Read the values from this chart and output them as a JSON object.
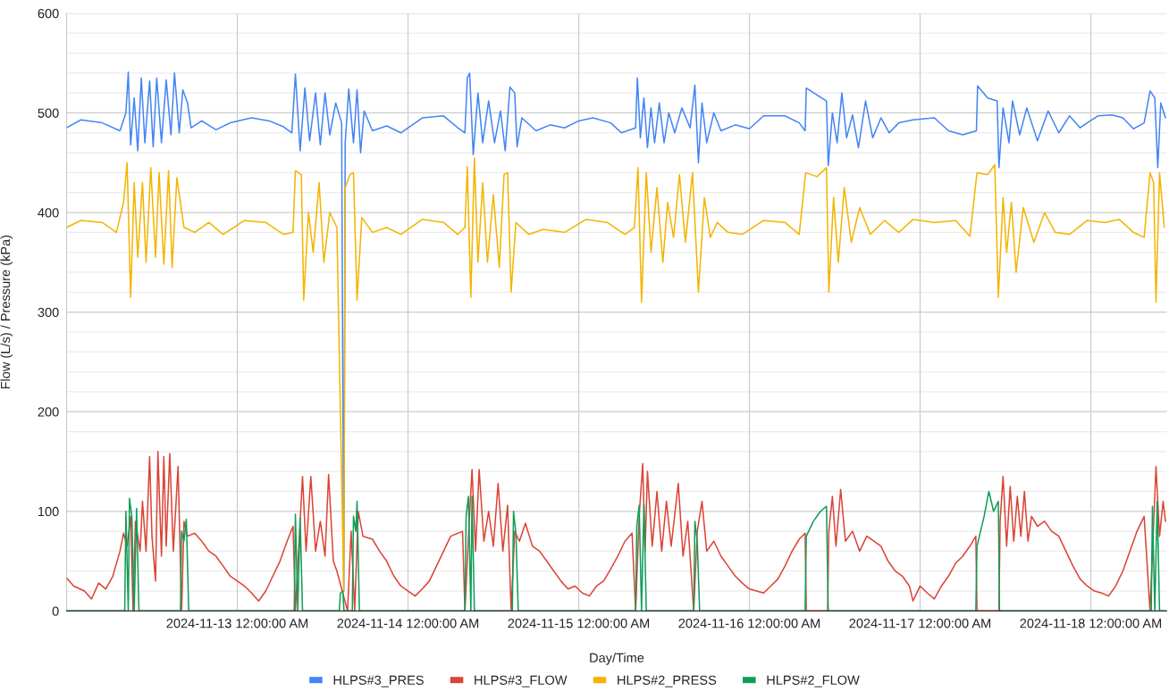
{
  "chart_data": {
    "type": "line",
    "xlabel": "Day/Time",
    "ylabel": "Flow (L/s) / Pressure (kPa)",
    "xlim": [
      "2024-11-12T00:00",
      "2024-11-18T10:40"
    ],
    "xticks": [
      {
        "value": "2024-11-13T00:00",
        "label": "2024-11-13 12:00:00 AM"
      },
      {
        "value": "2024-11-14T00:00",
        "label": "2024-11-14 12:00:00 AM"
      },
      {
        "value": "2024-11-15T00:00",
        "label": "2024-11-15 12:00:00 AM"
      },
      {
        "value": "2024-11-16T00:00",
        "label": "2024-11-16 12:00:00 AM"
      },
      {
        "value": "2024-11-17T00:00",
        "label": "2024-11-17 12:00:00 AM"
      },
      {
        "value": "2024-11-18T00:00",
        "label": "2024-11-18 12:00:00 AM"
      }
    ],
    "ylim": [
      0,
      600
    ],
    "yticks": [
      0,
      {
        "value": 20,
        "label": null
      },
      {
        "value": 40,
        "label": null
      },
      {
        "value": 60,
        "label": null
      },
      {
        "value": 80,
        "label": null
      },
      100,
      {
        "value": 120,
        "label": null
      },
      {
        "value": 140,
        "label": null
      },
      {
        "value": 160,
        "label": null
      },
      {
        "value": 180,
        "label": null
      },
      200,
      {
        "value": 220,
        "label": null
      },
      {
        "value": 240,
        "label": null
      },
      {
        "value": 260,
        "label": null
      },
      {
        "value": 280,
        "label": null
      },
      300,
      {
        "value": 320,
        "label": null
      },
      {
        "value": 340,
        "label": null
      },
      {
        "value": 360,
        "label": null
      },
      {
        "value": 380,
        "label": null
      },
      400,
      {
        "value": 420,
        "label": null
      },
      {
        "value": 440,
        "label": null
      },
      {
        "value": 460,
        "label": null
      },
      {
        "value": 480,
        "label": null
      },
      500,
      {
        "value": 520,
        "label": null
      },
      {
        "value": 540,
        "label": null
      },
      {
        "value": 560,
        "label": null
      },
      {
        "value": 580,
        "label": null
      },
      600
    ],
    "grid": true,
    "legend": "bottom",
    "marker": "none",
    "line_style": "solid",
    "series": [
      {
        "name": "HLPS#3_PRES",
        "color": "#4285f4",
        "x": [
          "2024-11-12T00:00",
          "2024-11-12T02:00",
          "2024-11-12T05:00",
          "2024-11-12T07:30",
          "2024-11-12T08:20",
          "2024-11-12T08:40",
          "2024-11-12T09:00",
          "2024-11-12T09:30",
          "2024-11-12T10:00",
          "2024-11-12T10:30",
          "2024-11-12T11:00",
          "2024-11-12T11:40",
          "2024-11-12T12:10",
          "2024-11-12T12:40",
          "2024-11-12T13:20",
          "2024-11-12T14:00",
          "2024-11-12T14:40",
          "2024-11-12T15:10",
          "2024-11-12T15:50",
          "2024-11-12T16:20",
          "2024-11-12T17:00",
          "2024-11-12T17:30",
          "2024-11-12T19:00",
          "2024-11-12T21:00",
          "2024-11-12T23:00",
          "2024-11-13T02:00",
          "2024-11-13T04:30",
          "2024-11-13T06:30",
          "2024-11-13T07:40",
          "2024-11-13T08:10",
          "2024-11-13T08:50",
          "2024-11-13T09:30",
          "2024-11-13T10:10",
          "2024-11-13T11:00",
          "2024-11-13T11:40",
          "2024-11-13T12:20",
          "2024-11-13T13:00",
          "2024-11-13T13:50",
          "2024-11-13T14:40",
          "2024-11-13T14:58",
          "2024-11-13T15:10",
          "2024-11-13T15:40",
          "2024-11-13T16:20",
          "2024-11-13T16:50",
          "2024-11-13T17:20",
          "2024-11-13T17:50",
          "2024-11-13T19:00",
          "2024-11-13T21:00",
          "2024-11-13T23:00",
          "2024-11-14T02:00",
          "2024-11-14T05:00",
          "2024-11-14T07:00",
          "2024-11-14T08:00",
          "2024-11-14T08:20",
          "2024-11-14T08:40",
          "2024-11-14T09:10",
          "2024-11-14T09:50",
          "2024-11-14T10:30",
          "2024-11-14T11:20",
          "2024-11-14T12:10",
          "2024-11-14T13:00",
          "2024-11-14T13:40",
          "2024-11-14T14:20",
          "2024-11-14T15:00",
          "2024-11-14T15:20",
          "2024-11-14T16:00",
          "2024-11-14T18:00",
          "2024-11-14T20:00",
          "2024-11-14T22:00",
          "2024-11-15T00:00",
          "2024-11-15T02:00",
          "2024-11-15T04:30",
          "2024-11-15T06:00",
          "2024-11-15T08:00",
          "2024-11-15T08:15",
          "2024-11-15T08:40",
          "2024-11-15T09:10",
          "2024-11-15T09:40",
          "2024-11-15T10:10",
          "2024-11-15T10:40",
          "2024-11-15T11:20",
          "2024-11-15T12:00",
          "2024-11-15T12:40",
          "2024-11-15T13:30",
          "2024-11-15T14:30",
          "2024-11-15T15:40",
          "2024-11-15T16:20",
          "2024-11-15T16:50",
          "2024-11-15T17:20",
          "2024-11-15T18:00",
          "2024-11-15T19:00",
          "2024-11-15T20:00",
          "2024-11-15T22:00",
          "2024-11-16T00:00",
          "2024-11-16T02:00",
          "2024-11-16T05:00",
          "2024-11-16T07:00",
          "2024-11-16T07:50",
          "2024-11-16T08:00",
          "2024-11-16T09:30",
          "2024-11-16T10:50",
          "2024-11-16T11:05",
          "2024-11-16T11:40",
          "2024-11-16T12:20",
          "2024-11-16T13:00",
          "2024-11-16T13:40",
          "2024-11-16T14:30",
          "2024-11-16T15:20",
          "2024-11-16T16:20",
          "2024-11-16T17:20",
          "2024-11-16T18:30",
          "2024-11-16T19:40",
          "2024-11-16T21:00",
          "2024-11-16T23:00",
          "2024-11-17T02:00",
          "2024-11-17T04:00",
          "2024-11-17T06:00",
          "2024-11-17T07:55",
          "2024-11-17T08:05",
          "2024-11-17T09:30",
          "2024-11-17T10:50",
          "2024-11-17T11:05",
          "2024-11-17T11:40",
          "2024-11-17T12:30",
          "2024-11-17T13:00",
          "2024-11-17T14:00",
          "2024-11-17T15:00",
          "2024-11-17T16:30",
          "2024-11-17T18:00",
          "2024-11-17T19:30",
          "2024-11-17T21:00",
          "2024-11-17T22:30",
          "2024-11-17T23:30",
          "2024-11-18T01:00",
          "2024-11-18T03:00",
          "2024-11-18T04:30",
          "2024-11-18T06:00",
          "2024-11-18T07:30",
          "2024-11-18T08:20",
          "2024-11-18T09:00",
          "2024-11-18T09:25",
          "2024-11-18T09:50",
          "2024-11-18T10:30"
        ],
        "values": [
          485,
          493,
          490,
          482,
          500,
          541,
          468,
          515,
          462,
          535,
          470,
          532,
          466,
          535,
          470,
          533,
          478,
          540,
          480,
          523,
          510,
          485,
          492,
          483,
          490,
          495,
          492,
          486,
          480,
          539,
          462,
          525,
          472,
          520,
          468,
          520,
          478,
          510,
          490,
          20,
          470,
          524,
          470,
          523,
          460,
          502,
          482,
          487,
          480,
          495,
          497,
          485,
          480,
          535,
          540,
          458,
          520,
          470,
          512,
          470,
          502,
          462,
          526,
          520,
          466,
          495,
          482,
          488,
          485,
          492,
          495,
          490,
          480,
          485,
          535,
          475,
          515,
          465,
          505,
          470,
          510,
          470,
          500,
          480,
          505,
          485,
          528,
          450,
          510,
          470,
          500,
          482,
          488,
          484,
          497,
          497,
          490,
          482,
          525,
          518,
          512,
          447,
          500,
          470,
          520,
          475,
          498,
          465,
          512,
          475,
          495,
          480,
          490,
          493,
          495,
          482,
          478,
          482,
          527,
          515,
          512,
          445,
          505,
          470,
          512,
          478,
          505,
          472,
          502,
          480,
          497,
          485,
          490,
          497,
          498,
          495,
          484,
          490,
          522,
          515,
          445,
          510,
          495
        ]
      },
      {
        "name": "HLPS#3_FLOW",
        "color": "#db4437",
        "x": [
          "2024-11-12T00:00",
          "2024-11-12T01:00",
          "2024-11-12T02:30",
          "2024-11-12T03:30",
          "2024-11-12T04:30",
          "2024-11-12T05:30",
          "2024-11-12T06:30",
          "2024-11-12T07:30",
          "2024-11-12T08:00",
          "2024-11-12T08:30",
          "2024-11-12T09:00",
          "2024-11-12T09:20",
          "2024-11-12T09:40",
          "2024-11-12T10:20",
          "2024-11-12T10:40",
          "2024-11-12T11:10",
          "2024-11-12T11:40",
          "2024-11-12T12:00",
          "2024-11-12T12:30",
          "2024-11-12T12:50",
          "2024-11-12T13:20",
          "2024-11-12T13:40",
          "2024-11-12T14:00",
          "2024-11-12T14:30",
          "2024-11-12T15:00",
          "2024-11-12T15:40",
          "2024-11-12T16:10",
          "2024-11-12T16:30",
          "2024-11-12T17:00",
          "2024-11-12T18:00",
          "2024-11-12T19:00",
          "2024-11-12T20:00",
          "2024-11-12T21:00",
          "2024-11-12T22:00",
          "2024-11-12T23:00",
          "2024-11-13T00:00",
          "2024-11-13T01:00",
          "2024-11-13T02:00",
          "2024-11-13T03:00",
          "2024-11-13T04:00",
          "2024-11-13T05:00",
          "2024-11-13T06:00",
          "2024-11-13T07:00",
          "2024-11-13T07:50",
          "2024-11-13T08:10",
          "2024-11-13T08:40",
          "2024-11-13T09:10",
          "2024-11-13T09:40",
          "2024-11-13T10:20",
          "2024-11-13T11:00",
          "2024-11-13T11:40",
          "2024-11-13T12:20",
          "2024-11-13T12:50",
          "2024-11-13T13:30",
          "2024-11-13T14:00",
          "2024-11-13T15:30",
          "2024-11-13T16:00",
          "2024-11-13T16:30",
          "2024-11-13T17:00",
          "2024-11-13T17:40",
          "2024-11-13T19:00",
          "2024-11-13T20:00",
          "2024-11-13T21:00",
          "2024-11-13T22:00",
          "2024-11-13T23:00",
          "2024-11-14T00:00",
          "2024-11-14T01:00",
          "2024-11-14T02:00",
          "2024-11-14T03:00",
          "2024-11-14T04:00",
          "2024-11-14T05:00",
          "2024-11-14T06:00",
          "2024-11-14T07:40",
          "2024-11-14T08:00",
          "2024-11-14T08:30",
          "2024-11-14T09:00",
          "2024-11-14T09:30",
          "2024-11-14T10:00",
          "2024-11-14T10:40",
          "2024-11-14T11:20",
          "2024-11-14T12:00",
          "2024-11-14T12:40",
          "2024-11-14T13:20",
          "2024-11-14T14:00",
          "2024-11-14T14:30",
          "2024-11-14T15:00",
          "2024-11-14T15:40",
          "2024-11-14T16:30",
          "2024-11-14T17:30",
          "2024-11-14T18:30",
          "2024-11-14T19:30",
          "2024-11-14T20:30",
          "2024-11-14T21:30",
          "2024-11-14T22:30",
          "2024-11-14T23:30",
          "2024-11-15T00:30",
          "2024-11-15T01:30",
          "2024-11-15T02:30",
          "2024-11-15T03:30",
          "2024-11-15T04:30",
          "2024-11-15T05:30",
          "2024-11-15T06:30",
          "2024-11-15T07:30",
          "2024-11-15T08:00",
          "2024-11-15T08:30",
          "2024-11-15T09:00",
          "2024-11-15T09:20",
          "2024-11-15T09:40",
          "2024-11-15T10:20",
          "2024-11-15T11:00",
          "2024-11-15T11:40",
          "2024-11-15T12:20",
          "2024-11-15T13:00",
          "2024-11-15T14:00",
          "2024-11-15T14:40",
          "2024-11-15T15:20",
          "2024-11-15T16:10",
          "2024-11-15T16:40",
          "2024-11-15T17:20",
          "2024-11-15T18:00",
          "2024-11-15T19:00",
          "2024-11-15T20:00",
          "2024-11-15T21:00",
          "2024-11-15T22:00",
          "2024-11-15T23:00",
          "2024-11-16T00:00",
          "2024-11-16T01:00",
          "2024-11-16T02:00",
          "2024-11-16T03:00",
          "2024-11-16T04:00",
          "2024-11-16T05:00",
          "2024-11-16T06:00",
          "2024-11-16T07:00",
          "2024-11-16T07:50",
          "2024-11-16T08:00",
          "2024-11-16T11:00",
          "2024-11-16T11:10",
          "2024-11-16T11:40",
          "2024-11-16T12:10",
          "2024-11-16T12:50",
          "2024-11-16T13:30",
          "2024-11-16T14:30",
          "2024-11-16T15:30",
          "2024-11-16T16:30",
          "2024-11-16T17:30",
          "2024-11-16T18:30",
          "2024-11-16T19:30",
          "2024-11-16T20:30",
          "2024-11-16T21:30",
          "2024-11-16T22:30",
          "2024-11-16T23:00",
          "2024-11-17T00:00",
          "2024-11-17T01:00",
          "2024-11-17T02:00",
          "2024-11-17T03:00",
          "2024-11-17T04:00",
          "2024-11-17T05:00",
          "2024-11-17T06:00",
          "2024-11-17T07:00",
          "2024-11-17T07:50",
          "2024-11-17T08:00",
          "2024-11-17T11:05",
          "2024-11-17T11:15",
          "2024-11-17T11:40",
          "2024-11-17T12:10",
          "2024-11-17T12:40",
          "2024-11-17T13:10",
          "2024-11-17T13:40",
          "2024-11-17T14:10",
          "2024-11-17T14:40",
          "2024-11-17T15:10",
          "2024-11-17T15:40",
          "2024-11-17T16:30",
          "2024-11-17T17:30",
          "2024-11-17T18:30",
          "2024-11-17T19:30",
          "2024-11-17T20:30",
          "2024-11-17T21:30",
          "2024-11-17T22:30",
          "2024-11-17T23:30",
          "2024-11-18T00:30",
          "2024-11-18T01:30",
          "2024-11-18T02:30",
          "2024-11-18T03:30",
          "2024-11-18T04:30",
          "2024-11-18T05:30",
          "2024-11-18T06:30",
          "2024-11-18T07:30",
          "2024-11-18T08:20",
          "2024-11-18T08:40",
          "2024-11-18T09:10",
          "2024-11-18T09:40",
          "2024-11-18T10:10",
          "2024-11-18T10:30"
        ],
        "values": [
          33,
          25,
          20,
          12,
          28,
          22,
          35,
          60,
          78,
          65,
          95,
          0,
          90,
          60,
          110,
          60,
          155,
          75,
          30,
          160,
          55,
          155,
          65,
          158,
          60,
          145,
          0,
          90,
          75,
          78,
          70,
          60,
          55,
          45,
          35,
          30,
          25,
          18,
          10,
          20,
          35,
          50,
          70,
          85,
          0,
          null,
          135,
          60,
          135,
          60,
          90,
          55,
          137,
          50,
          40,
          0,
          80,
          0,
          100,
          75,
          72,
          60,
          50,
          35,
          25,
          20,
          15,
          22,
          30,
          45,
          60,
          75,
          80,
          0,
          75,
          142,
          60,
          142,
          70,
          100,
          65,
          128,
          60,
          106,
          0,
          80,
          70,
          88,
          65,
          60,
          50,
          40,
          30,
          22,
          25,
          18,
          15,
          25,
          30,
          42,
          55,
          70,
          78,
          0,
          95,
          148,
          60,
          140,
          65,
          120,
          60,
          110,
          65,
          128,
          55,
          90,
          0,
          80,
          110,
          60,
          70,
          55,
          45,
          35,
          28,
          22,
          20,
          18,
          25,
          32,
          45,
          60,
          72,
          78,
          0,
          0,
          80,
          115,
          65,
          122,
          70,
          80,
          60,
          75,
          70,
          65,
          50,
          40,
          35,
          25,
          10,
          25,
          18,
          12,
          25,
          35,
          48,
          55,
          65,
          75,
          0,
          0,
          90,
          135,
          65,
          125,
          70,
          115,
          75,
          120,
          70,
          95,
          85,
          90,
          80,
          75,
          60,
          45,
          32,
          25,
          20,
          18,
          15,
          25,
          40,
          60,
          80,
          95,
          0,
          null,
          145,
          75,
          110,
          90
        ]
      },
      {
        "name": "HLPS#2_PRESS",
        "color": "#f4b400",
        "x": [
          "2024-11-12T00:00",
          "2024-11-12T02:00",
          "2024-11-12T05:00",
          "2024-11-12T07:00",
          "2024-11-12T08:00",
          "2024-11-12T08:30",
          "2024-11-12T09:00",
          "2024-11-12T09:30",
          "2024-11-12T10:00",
          "2024-11-12T10:40",
          "2024-11-12T11:10",
          "2024-11-12T11:50",
          "2024-11-12T12:30",
          "2024-11-12T13:00",
          "2024-11-12T13:40",
          "2024-11-12T14:20",
          "2024-11-12T14:50",
          "2024-11-12T15:30",
          "2024-11-12T16:30",
          "2024-11-12T18:00",
          "2024-11-12T20:00",
          "2024-11-12T22:00",
          "2024-11-13T01:00",
          "2024-11-13T04:00",
          "2024-11-13T06:30",
          "2024-11-13T07:50",
          "2024-11-13T08:10",
          "2024-11-13T09:00",
          "2024-11-13T09:20",
          "2024-11-13T10:00",
          "2024-11-13T10:40",
          "2024-11-13T11:30",
          "2024-11-13T12:10",
          "2024-11-13T13:00",
          "2024-11-13T14:00",
          "2024-11-13T14:58",
          "2024-11-13T15:10",
          "2024-11-13T15:50",
          "2024-11-13T16:20",
          "2024-11-13T16:50",
          "2024-11-13T17:30",
          "2024-11-13T19:00",
          "2024-11-13T21:00",
          "2024-11-13T23:00",
          "2024-11-14T02:00",
          "2024-11-14T05:00",
          "2024-11-14T07:00",
          "2024-11-14T08:00",
          "2024-11-14T08:20",
          "2024-11-14T08:50",
          "2024-11-14T09:20",
          "2024-11-14T09:50",
          "2024-11-14T10:30",
          "2024-11-14T11:10",
          "2024-11-14T12:00",
          "2024-11-14T12:50",
          "2024-11-14T13:30",
          "2024-11-14T14:00",
          "2024-11-14T14:30",
          "2024-11-14T15:10",
          "2024-11-14T17:00",
          "2024-11-14T19:00",
          "2024-11-14T22:00",
          "2024-11-15T01:00",
          "2024-11-15T04:00",
          "2024-11-15T06:30",
          "2024-11-15T07:50",
          "2024-11-15T08:20",
          "2024-11-15T08:50",
          "2024-11-15T09:30",
          "2024-11-15T10:10",
          "2024-11-15T11:00",
          "2024-11-15T11:50",
          "2024-11-15T12:30",
          "2024-11-15T13:20",
          "2024-11-15T14:10",
          "2024-11-15T15:00",
          "2024-11-15T16:00",
          "2024-11-15T16:50",
          "2024-11-15T17:40",
          "2024-11-15T18:30",
          "2024-11-15T19:30",
          "2024-11-15T21:00",
          "2024-11-15T23:00",
          "2024-11-16T02:00",
          "2024-11-16T05:00",
          "2024-11-16T07:00",
          "2024-11-16T07:55",
          "2024-11-16T09:30",
          "2024-11-16T10:50",
          "2024-11-16T11:10",
          "2024-11-16T11:50",
          "2024-11-16T12:30",
          "2024-11-16T13:20",
          "2024-11-16T14:20",
          "2024-11-16T15:30",
          "2024-11-16T17:00",
          "2024-11-16T19:00",
          "2024-11-16T21:00",
          "2024-11-16T23:00",
          "2024-11-17T02:00",
          "2024-11-17T05:00",
          "2024-11-17T07:00",
          "2024-11-17T08:00",
          "2024-11-17T09:30",
          "2024-11-17T10:30",
          "2024-11-17T11:00",
          "2024-11-17T11:40",
          "2024-11-17T12:10",
          "2024-11-17T12:50",
          "2024-11-17T13:30",
          "2024-11-17T14:30",
          "2024-11-17T16:00",
          "2024-11-17T17:30",
          "2024-11-17T19:00",
          "2024-11-17T21:00",
          "2024-11-17T23:30",
          "2024-11-18T02:00",
          "2024-11-18T04:00",
          "2024-11-18T06:00",
          "2024-11-18T07:30",
          "2024-11-18T08:20",
          "2024-11-18T08:50",
          "2024-11-18T09:10",
          "2024-11-18T09:40",
          "2024-11-18T10:20"
        ],
        "values": [
          385,
          392,
          390,
          380,
          410,
          450,
          315,
          430,
          355,
          430,
          350,
          445,
          355,
          440,
          348,
          442,
          345,
          435,
          385,
          380,
          390,
          378,
          392,
          390,
          378,
          380,
          442,
          438,
          312,
          400,
          360,
          430,
          350,
          400,
          385,
          20,
          425,
          438,
          440,
          312,
          395,
          380,
          385,
          378,
          393,
          390,
          378,
          385,
          446,
          315,
          455,
          350,
          430,
          350,
          418,
          345,
          438,
          440,
          320,
          390,
          378,
          383,
          380,
          393,
          390,
          378,
          385,
          445,
          310,
          440,
          360,
          425,
          350,
          410,
          375,
          438,
          370,
          440,
          320,
          415,
          375,
          390,
          380,
          378,
          392,
          390,
          378,
          440,
          436,
          445,
          320,
          415,
          350,
          425,
          370,
          405,
          378,
          392,
          380,
          393,
          390,
          392,
          376,
          440,
          438,
          448,
          315,
          415,
          360,
          410,
          340,
          405,
          370,
          400,
          380,
          378,
          392,
          390,
          393,
          380,
          375,
          440,
          430,
          310,
          440,
          385
        ]
      },
      {
        "name": "HLPS#2_FLOW",
        "color": "#0f9d58",
        "x": [
          "2024-11-12T00:00",
          "2024-11-12T08:10",
          "2024-11-12T08:20",
          "2024-11-12T08:40",
          "2024-11-12T08:50",
          "2024-11-12T09:10",
          "2024-11-12T09:30",
          "2024-11-12T09:50",
          "2024-11-12T10:10",
          "2024-11-12T16:00",
          "2024-11-12T16:10",
          "2024-11-12T16:30",
          "2024-11-12T16:50",
          "2024-11-12T17:10",
          "2024-11-13T08:00",
          "2024-11-13T08:10",
          "2024-11-13T08:30",
          "2024-11-13T08:50",
          "2024-11-13T09:10",
          "2024-11-13T14:20",
          "2024-11-13T14:30",
          "2024-11-13T14:50",
          "2024-11-13T15:00",
          "2024-11-13T16:10",
          "2024-11-13T16:20",
          "2024-11-13T16:40",
          "2024-11-13T16:50",
          "2024-11-13T17:10",
          "2024-11-14T08:00",
          "2024-11-14T08:10",
          "2024-11-14T08:30",
          "2024-11-14T08:50",
          "2024-11-14T09:00",
          "2024-11-14T09:20",
          "2024-11-14T14:40",
          "2024-11-14T14:50",
          "2024-11-14T15:10",
          "2024-11-14T15:30",
          "2024-11-15T08:00",
          "2024-11-15T08:10",
          "2024-11-15T08:30",
          "2024-11-15T08:50",
          "2024-11-15T09:10",
          "2024-11-15T09:30",
          "2024-11-15T16:10",
          "2024-11-15T16:20",
          "2024-11-15T16:40",
          "2024-11-15T17:00",
          "2024-11-16T07:50",
          "2024-11-16T08:00",
          "2024-11-16T09:00",
          "2024-11-16T10:00",
          "2024-11-16T10:50",
          "2024-11-16T11:05",
          "2024-11-17T07:50",
          "2024-11-17T08:00",
          "2024-11-17T09:00",
          "2024-11-17T09:40",
          "2024-11-17T10:20",
          "2024-11-17T11:00",
          "2024-11-17T11:10",
          "2024-11-18T08:30",
          "2024-11-18T08:40",
          "2024-11-18T09:00",
          "2024-11-18T09:20",
          "2024-11-18T09:40",
          "2024-11-18T10:30"
        ],
        "values": [
          0,
          0,
          100,
          0,
          113,
          95,
          0,
          103,
          0,
          0,
          80,
          70,
          92,
          0,
          0,
          97,
          0,
          93,
          0,
          0,
          18,
          20,
          0,
          0,
          95,
          80,
          110,
          0,
          0,
          95,
          115,
          0,
          115,
          0,
          0,
          100,
          78,
          0,
          0,
          85,
          106,
          0,
          107,
          0,
          0,
          90,
          70,
          0,
          0,
          75,
          90,
          100,
          105,
          0,
          0,
          65,
          95,
          120,
          100,
          110,
          0,
          0,
          105,
          0,
          110,
          0,
          0
        ]
      }
    ]
  }
}
